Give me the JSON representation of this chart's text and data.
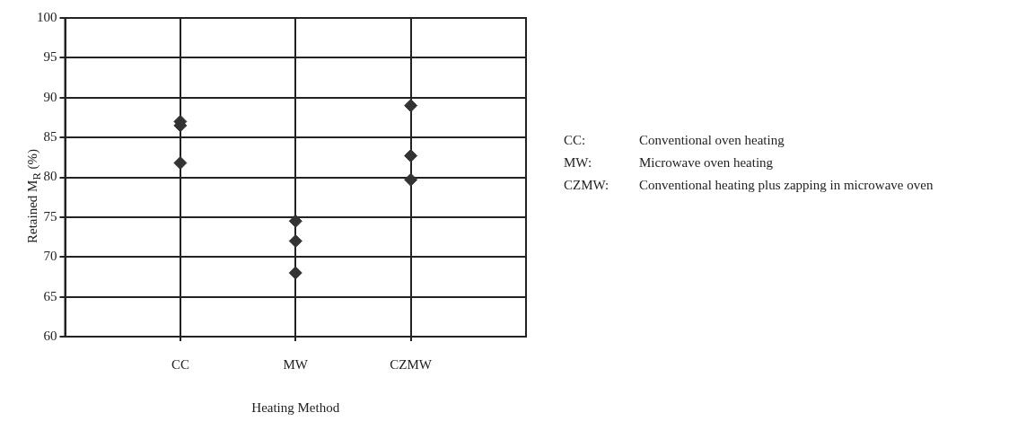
{
  "chart_data": {
    "type": "scatter",
    "xlabel": "Heating Method",
    "ylabel": "Retained M$_{R}$ (%)",
    "categories": [
      "CC",
      "MW",
      "CZMW"
    ],
    "series": [
      {
        "color": "#333333",
        "x": [
          "CC",
          "CC",
          "CC",
          "MW",
          "MW",
          "MW",
          "CZMW",
          "CZMW",
          "CZMW"
        ],
        "values": [
          87,
          86.5,
          81.8,
          74.5,
          72,
          68,
          89,
          82.7,
          79.7
        ]
      }
    ],
    "ylim": [
      60,
      100
    ],
    "yticks": [
      60,
      65,
      70,
      75,
      80,
      85,
      90,
      95,
      100
    ],
    "grid": true,
    "legend": false,
    "marker": "diamond",
    "annotations": [
      "CC: Conventional oven heating",
      "MW: Microwave oven heating",
      "CZMW: Conventional heating plus zapping in microwave oven"
    ]
  }
}
